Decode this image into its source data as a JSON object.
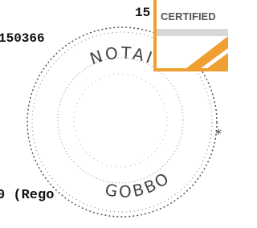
{
  "text": {
    "ref_number": "150366",
    "partial": "15",
    "bottom_line": "0 (Rego"
  },
  "badge": {
    "label": "CERTIFIED"
  },
  "stamp": {
    "top": "NOTAIO",
    "bottom": "GOBBO"
  }
}
